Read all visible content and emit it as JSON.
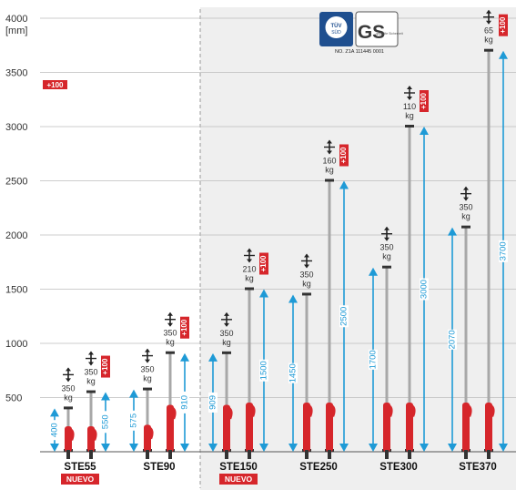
{
  "chart_data": {
    "type": "bar",
    "y_axis": {
      "ylim": [
        0,
        4000
      ],
      "ticks": [
        "500",
        "1000",
        "1500",
        "2000",
        "2500",
        "3000",
        "3500",
        "4000"
      ],
      "unit": "[mm]"
    },
    "grid": true,
    "extension_badge": "+100",
    "certification": {
      "tuv_line1": "TÜV",
      "tuv_line2": "SÜD",
      "gs": "GS",
      "gs_small": "geprüfte Sicherheit",
      "number": "NO. Z1A 111445 0001"
    },
    "props": [
      {
        "model": "STE55",
        "badge": "NUEVO",
        "min": 400,
        "max": 550,
        "load_min": "350",
        "load_max": "350",
        "unit": "kg",
        "min_label": "400",
        "max_label": "550"
      },
      {
        "model": "STE90",
        "min": 575,
        "max": 910,
        "load_min": "350",
        "load_max": "350",
        "unit": "kg",
        "min_label": "575",
        "max_label": "910"
      },
      {
        "model": "STE150",
        "badge": "NUEVO",
        "min": 909,
        "max": 1500,
        "load_min": "350",
        "load_max": "210",
        "unit": "kg",
        "min_label": "909",
        "max_label": "1500"
      },
      {
        "model": "STE250",
        "min": 1450,
        "max": 2500,
        "load_min": "350",
        "load_max": "160",
        "unit": "kg",
        "min_label": "1450",
        "max_label": "2500"
      },
      {
        "model": "STE300",
        "min": 1700,
        "max": 3000,
        "load_min": "350",
        "load_max": "110",
        "unit": "kg",
        "min_label": "1700",
        "max_label": "3000"
      },
      {
        "model": "STE370",
        "min": 2070,
        "max": 3700,
        "load_min": "350",
        "load_max": "65",
        "unit": "kg",
        "min_label": "2070",
        "max_label": "3700"
      }
    ]
  },
  "colors": {
    "arrow": "#1e9ad6",
    "red": "#d6262b",
    "tube": "#a8a8a8",
    "grid": "#bdbdbd",
    "shade": "#efefef"
  }
}
